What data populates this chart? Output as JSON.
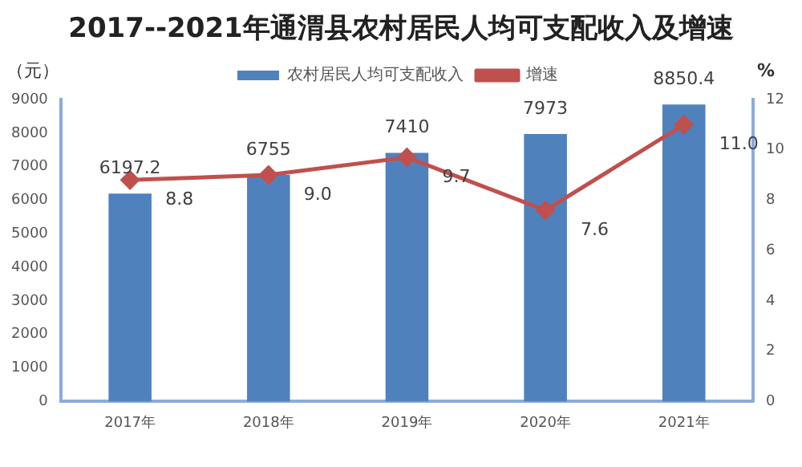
{
  "chart_data": {
    "type": "bar",
    "title": "2017--2021年通渭县农村居民人均可支配收入及增速",
    "categories": [
      "2017年",
      "2018年",
      "2019年",
      "2020年",
      "2021年"
    ],
    "series": [
      {
        "name": "农村居民人均可支配收入",
        "color": "#4f81bd",
        "values": [
          6197.2,
          6755,
          7410,
          7973,
          8850.4
        ]
      },
      {
        "name": "增速",
        "type": "line",
        "axis": "y2",
        "color": "#c0504d",
        "marker": "diamond",
        "values": [
          8.8,
          9.0,
          9.7,
          7.6,
          11.0
        ],
        "value_labels": [
          "8.8",
          "9.0",
          "9.7",
          "7.6",
          "11.0"
        ]
      }
    ],
    "data_labels": true,
    "ylabel": "（元）",
    "y2label": "%",
    "ylim": [
      0,
      9000
    ],
    "yticks": [
      0,
      1000,
      2000,
      3000,
      4000,
      5000,
      6000,
      7000,
      8000,
      9000
    ],
    "y2lim": [
      0,
      12
    ],
    "y2ticks": [
      0,
      2,
      4,
      6,
      8,
      10,
      12
    ],
    "legend": "top",
    "grid": false
  }
}
